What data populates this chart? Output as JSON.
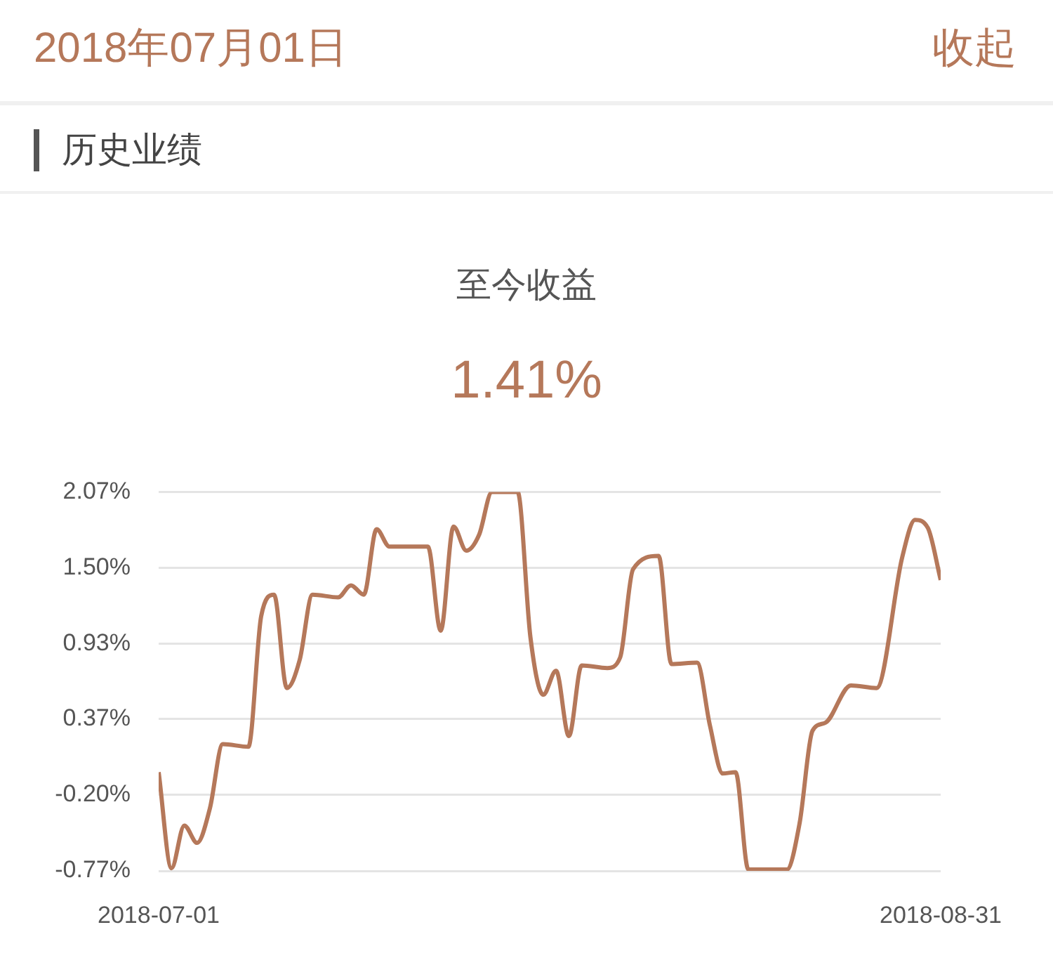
{
  "chart_data": {
    "type": "line",
    "title": "至今收益",
    "subtitle": "1.41%",
    "annotations": [
      "2018年07月01日",
      "收起",
      "历史业绩"
    ],
    "x": [
      "2018-07-01",
      "2018-07-02",
      "2018-07-03",
      "2018-07-04",
      "2018-07-05",
      "2018-07-06",
      "2018-07-08",
      "2018-07-09",
      "2018-07-10",
      "2018-07-11",
      "2018-07-12",
      "2018-07-13",
      "2018-07-15",
      "2018-07-16",
      "2018-07-17",
      "2018-07-18",
      "2018-07-19",
      "2018-07-22",
      "2018-07-23",
      "2018-07-24",
      "2018-07-25",
      "2018-07-26",
      "2018-07-27",
      "2018-07-29",
      "2018-07-30",
      "2018-07-31",
      "2018-08-01",
      "2018-08-02",
      "2018-08-03",
      "2018-08-05",
      "2018-08-06",
      "2018-08-07",
      "2018-08-09",
      "2018-08-10",
      "2018-08-12",
      "2018-08-13",
      "2018-08-14",
      "2018-08-15",
      "2018-08-16",
      "2018-08-19",
      "2018-08-20",
      "2018-08-21",
      "2018-08-22",
      "2018-08-24",
      "2018-08-26",
      "2018-08-28",
      "2018-08-29",
      "2018-08-30",
      "2018-08-31"
    ],
    "series": [
      {
        "color": "#b5785a",
        "values": [
          -0.03,
          -0.75,
          -0.43,
          -0.56,
          -0.3,
          0.18,
          0.16,
          1.14,
          1.3,
          0.6,
          0.81,
          1.3,
          1.28,
          1.37,
          1.3,
          1.79,
          1.66,
          1.66,
          1.03,
          1.81,
          1.63,
          1.75,
          2.07,
          2.07,
          0.98,
          0.55,
          0.73,
          0.24,
          0.77,
          0.75,
          0.83,
          1.49,
          1.59,
          0.78,
          0.79,
          0.32,
          -0.04,
          -0.03,
          -0.76,
          -0.76,
          -0.41,
          0.28,
          0.34,
          0.62,
          0.6,
          1.58,
          1.86,
          1.8,
          1.41
        ]
      }
    ],
    "xlim": [
      "2018-07-01",
      "2018-08-31"
    ],
    "xticks": [
      "2018-07-01",
      "2018-08-31"
    ],
    "ylim": [
      -0.77,
      2.07
    ],
    "yticks": [
      {
        "value": -0.77,
        "label": "-0.77%"
      },
      {
        "value": -0.2,
        "label": "-0.20%"
      },
      {
        "value": 0.37,
        "label": "0.37%"
      },
      {
        "value": 0.93,
        "label": "0.93%"
      },
      {
        "value": 1.5,
        "label": "1.50%"
      },
      {
        "value": 2.07,
        "label": "2.07%"
      }
    ],
    "grid": "y",
    "legend": false,
    "marker": "none",
    "line_style": "solid"
  }
}
